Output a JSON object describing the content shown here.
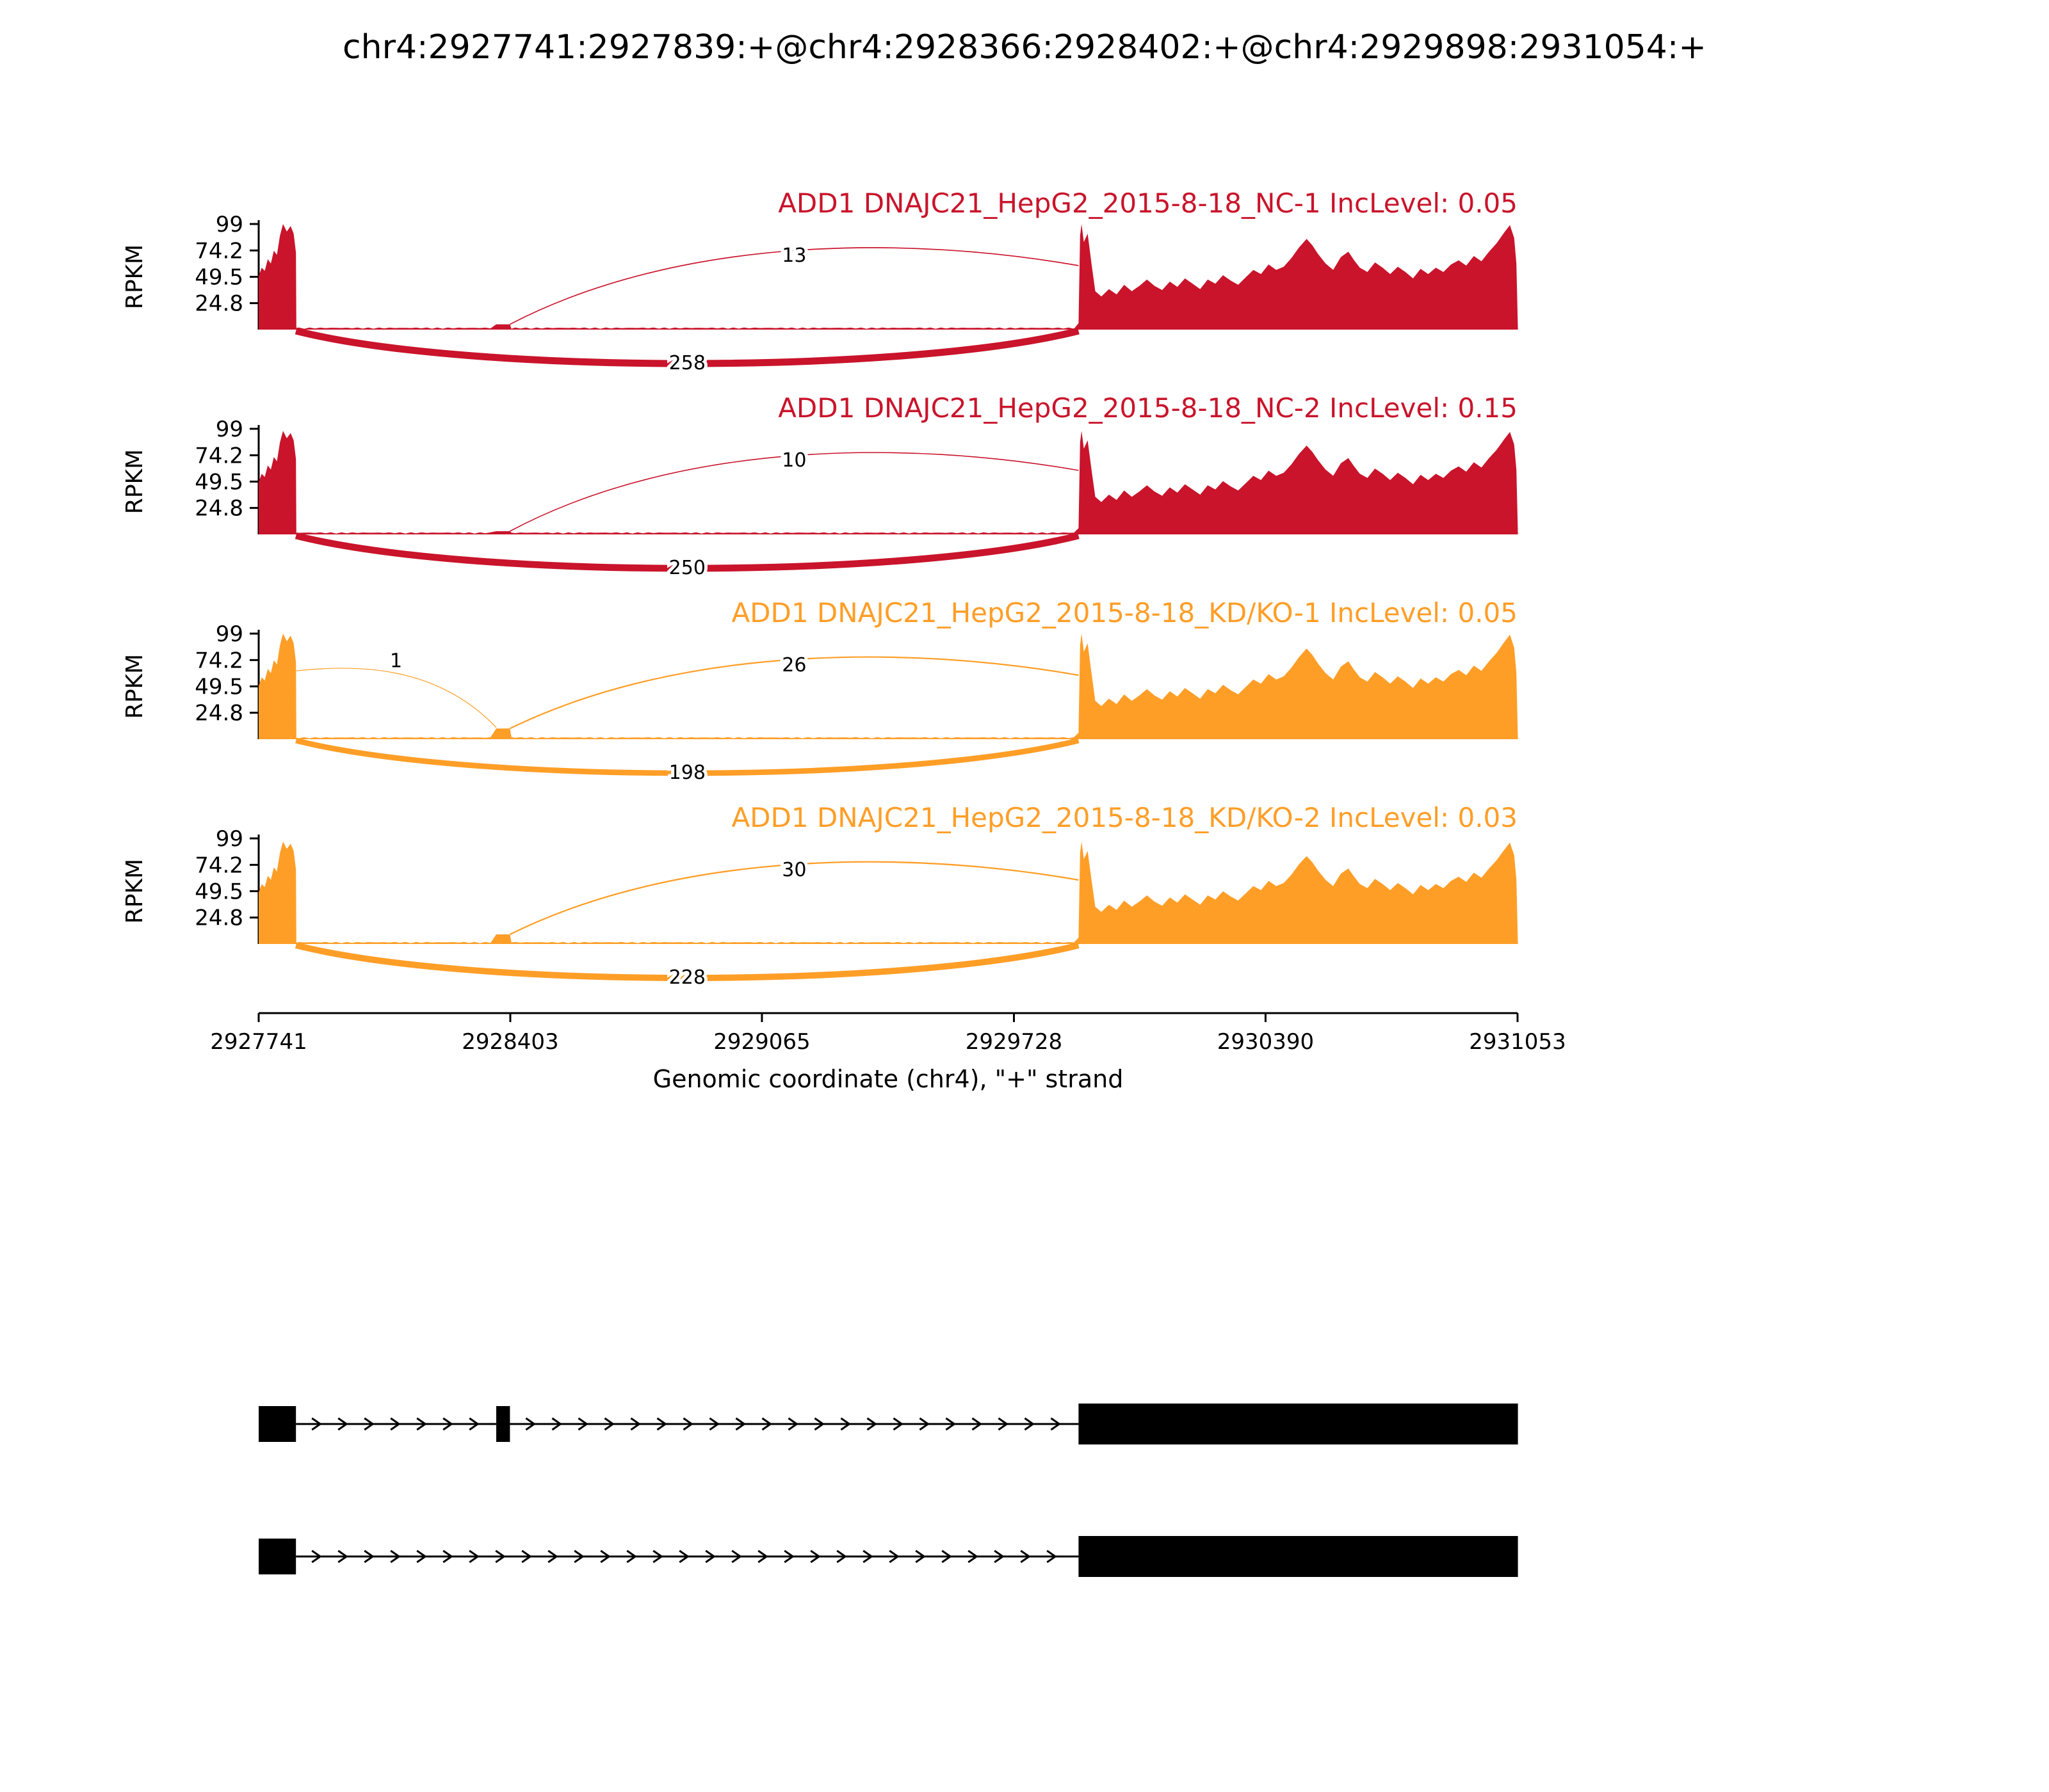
{
  "title": "chr4:2927741:2927839:+@chr4:2928366:2928402:+@chr4:2929898:2931054:+",
  "x_axis": {
    "label": "Genomic coordinate (chr4), \"+\" strand",
    "tick_labels": [
      "2927741",
      "2928403",
      "2929065",
      "2929728",
      "2930390",
      "2931053"
    ],
    "tick_positions": [
      2927741,
      2928403,
      2929065,
      2929728,
      2930390,
      2931053
    ],
    "range": [
      2927741,
      2931053
    ]
  },
  "y_axis": {
    "label": "RPKM",
    "tick_labels": [
      "99",
      "74.2",
      "49.5",
      "24.8"
    ],
    "tick_values": [
      99,
      74.2,
      49.5,
      24.8
    ],
    "max": 99
  },
  "colors": {
    "nc_track": "#C9142B",
    "kd_track": "#FF9E27",
    "transcript": "#000000"
  },
  "chart_data": {
    "type": "area",
    "subtype": "sashimi",
    "region": {
      "chrom": "chr4",
      "start": 2927741,
      "end": 2931054,
      "strand": "+"
    },
    "exons": {
      "upstream": [
        2927741,
        2927839
      ],
      "skipped": [
        2928366,
        2928402
      ],
      "downstream": [
        2929898,
        2931054
      ]
    },
    "tracks": [
      {
        "label": "ADD1 DNAJC21_HepG2_2015-8-18_NC-1 IncLevel: 0.05",
        "inc_level": "0.05",
        "color": "#C9142B",
        "mid_exon_rpkm": 5,
        "profile_scale": 1.0,
        "junctions": [
          {
            "from": 2928402,
            "to": 2929898,
            "reads": 13,
            "arc": "up",
            "from_rpkm": 5,
            "to_rpkm": 60,
            "apex_rpkm": 88
          },
          {
            "from": 2927839,
            "to": 2929898,
            "reads": 258,
            "arc": "down"
          }
        ]
      },
      {
        "label": "ADD1 DNAJC21_HepG2_2015-8-18_NC-2 IncLevel: 0.15",
        "inc_level": "0.15",
        "color": "#C9142B",
        "mid_exon_rpkm": 3,
        "profile_scale": 0.98,
        "junctions": [
          {
            "from": 2928402,
            "to": 2929898,
            "reads": 10,
            "arc": "up",
            "from_rpkm": 3,
            "to_rpkm": 60,
            "apex_rpkm": 88
          },
          {
            "from": 2927839,
            "to": 2929898,
            "reads": 250,
            "arc": "down"
          }
        ]
      },
      {
        "label": "ADD1 DNAJC21_HepG2_2015-8-18_KD/KO-1 IncLevel: 0.05",
        "inc_level": "0.05",
        "color": "#FF9E27",
        "mid_exon_rpkm": 10,
        "profile_scale": 1.0,
        "junctions": [
          {
            "from": 2927839,
            "to": 2928366,
            "reads": 1,
            "arc": "up",
            "from_rpkm": 64,
            "to_rpkm": 11,
            "apex_rpkm": 70
          },
          {
            "from": 2928402,
            "to": 2929898,
            "reads": 26,
            "arc": "up",
            "from_rpkm": 10,
            "to_rpkm": 60,
            "apex_rpkm": 88
          },
          {
            "from": 2927839,
            "to": 2929898,
            "reads": 198,
            "arc": "down"
          }
        ]
      },
      {
        "label": "ADD1 DNAJC21_HepG2_2015-8-18_KD/KO-2 IncLevel: 0.03",
        "inc_level": "0.03",
        "color": "#FF9E27",
        "mid_exon_rpkm": 9,
        "profile_scale": 0.97,
        "junctions": [
          {
            "from": 2928402,
            "to": 2929898,
            "reads": 30,
            "arc": "up",
            "from_rpkm": 9,
            "to_rpkm": 60,
            "apex_rpkm": 88
          },
          {
            "from": 2927839,
            "to": 2929898,
            "reads": 228,
            "arc": "down"
          }
        ]
      }
    ],
    "coverage": {
      "intron_rpkm": 1.3,
      "left_exon": {
        "start": 2927741,
        "end": 2927839,
        "points": [
          [
            0,
            50
          ],
          [
            8,
            58
          ],
          [
            16,
            55
          ],
          [
            24,
            66
          ],
          [
            32,
            62
          ],
          [
            40,
            74
          ],
          [
            48,
            70
          ],
          [
            56,
            88
          ],
          [
            64,
            99
          ],
          [
            74,
            92
          ],
          [
            84,
            97
          ],
          [
            92,
            90
          ],
          [
            98,
            72
          ]
        ]
      },
      "mid_exon": {
        "start": 2928366,
        "end": 2928402
      },
      "right_exon": {
        "start": 2929898,
        "end": 2931054,
        "points": [
          [
            0,
            6
          ],
          [
            4,
            88
          ],
          [
            8,
            99
          ],
          [
            14,
            82
          ],
          [
            24,
            90
          ],
          [
            34,
            62
          ],
          [
            44,
            36
          ],
          [
            60,
            31
          ],
          [
            80,
            38
          ],
          [
            100,
            33
          ],
          [
            120,
            42
          ],
          [
            140,
            36
          ],
          [
            160,
            41
          ],
          [
            180,
            47
          ],
          [
            200,
            41
          ],
          [
            220,
            37
          ],
          [
            240,
            45
          ],
          [
            260,
            40
          ],
          [
            280,
            48
          ],
          [
            300,
            43
          ],
          [
            320,
            38
          ],
          [
            340,
            47
          ],
          [
            360,
            43
          ],
          [
            380,
            51
          ],
          [
            400,
            46
          ],
          [
            420,
            42
          ],
          [
            440,
            49
          ],
          [
            460,
            56
          ],
          [
            480,
            52
          ],
          [
            500,
            61
          ],
          [
            520,
            56
          ],
          [
            540,
            59
          ],
          [
            560,
            67
          ],
          [
            580,
            77
          ],
          [
            600,
            85
          ],
          [
            615,
            79
          ],
          [
            630,
            71
          ],
          [
            650,
            62
          ],
          [
            670,
            56
          ],
          [
            690,
            68
          ],
          [
            710,
            73
          ],
          [
            725,
            65
          ],
          [
            740,
            58
          ],
          [
            760,
            54
          ],
          [
            780,
            63
          ],
          [
            800,
            58
          ],
          [
            820,
            52
          ],
          [
            840,
            59
          ],
          [
            860,
            54
          ],
          [
            880,
            48
          ],
          [
            900,
            57
          ],
          [
            920,
            52
          ],
          [
            940,
            58
          ],
          [
            960,
            54
          ],
          [
            980,
            61
          ],
          [
            1000,
            65
          ],
          [
            1020,
            60
          ],
          [
            1040,
            69
          ],
          [
            1060,
            64
          ],
          [
            1080,
            73
          ],
          [
            1100,
            81
          ],
          [
            1120,
            91
          ],
          [
            1135,
            98
          ],
          [
            1146,
            86
          ],
          [
            1152,
            62
          ],
          [
            1156,
            0
          ]
        ]
      }
    }
  },
  "transcripts": [
    {
      "exons": [
        [
          2927741,
          2927839
        ],
        [
          2928366,
          2928402
        ],
        [
          2929898,
          2931054
        ]
      ]
    },
    {
      "exons": [
        [
          2927741,
          2927839
        ],
        [
          2929898,
          2931054
        ]
      ]
    }
  ]
}
